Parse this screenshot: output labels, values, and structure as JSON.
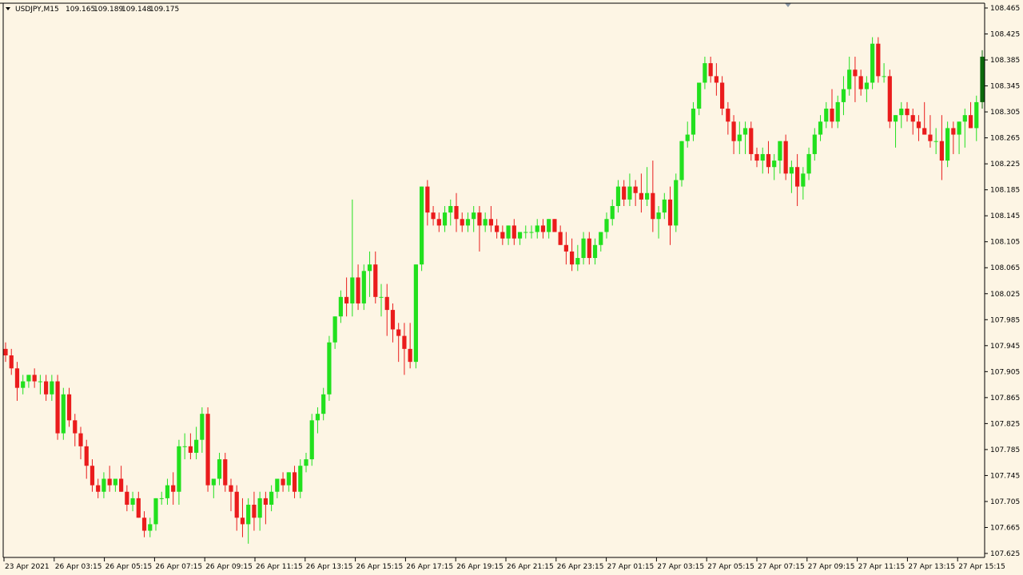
{
  "header": {
    "symbol": "USDJPY,M15",
    "open": "109.165",
    "high": "109.189",
    "low": "109.148",
    "close": "109.175",
    "menu_icon": "triangle-down-icon"
  },
  "colors": {
    "background": "#fdf5e4",
    "bull_candle": "#22e01e",
    "bear_candle": "#ea1c1c",
    "bull_candle_highlight": "#0c6a0c",
    "bear_candle_highlight": "#8b0000",
    "axis": "#000000",
    "grid_marker": "#8c9aa8"
  },
  "chart_data": {
    "type": "candlestick",
    "symbol": "USDJPY",
    "timeframe": "M15",
    "grid": false,
    "ylim": [
      107.625,
      108.465
    ],
    "y_ticks": [
      "108.465",
      "108.425",
      "108.385",
      "108.345",
      "108.305",
      "108.265",
      "108.225",
      "108.185",
      "108.145",
      "108.105",
      "108.065",
      "108.025",
      "107.985",
      "107.945",
      "107.905",
      "107.865",
      "107.825",
      "107.785",
      "107.745",
      "107.705",
      "107.665",
      "107.625"
    ],
    "x_tick_labels": [
      "23 Apr 2021",
      "26 Apr 03:15",
      "26 Apr 05:15",
      "26 Apr 07:15",
      "26 Apr 09:15",
      "26 Apr 11:15",
      "26 Apr 13:15",
      "26 Apr 15:15",
      "26 Apr 17:15",
      "26 Apr 19:15",
      "26 Apr 21:15",
      "26 Apr 23:15",
      "27 Apr 01:15",
      "27 Apr 03:15",
      "27 Apr 05:15",
      "27 Apr 07:15",
      "27 Apr 09:15",
      "27 Apr 11:15",
      "27 Apr 13:15",
      "27 Apr 15:15"
    ],
    "candles": [
      [
        107.94,
        107.95,
        107.92,
        107.93
      ],
      [
        107.93,
        107.94,
        107.9,
        107.91
      ],
      [
        107.91,
        107.92,
        107.86,
        107.88
      ],
      [
        107.88,
        107.9,
        107.87,
        107.89
      ],
      [
        107.89,
        107.9,
        107.88,
        107.9
      ],
      [
        107.9,
        107.91,
        107.88,
        107.89
      ],
      [
        107.89,
        107.9,
        107.87,
        107.89
      ],
      [
        107.89,
        107.9,
        107.86,
        107.87
      ],
      [
        107.87,
        107.9,
        107.86,
        107.89
      ],
      [
        107.89,
        107.9,
        107.8,
        107.81
      ],
      [
        107.81,
        107.88,
        107.8,
        107.87
      ],
      [
        107.87,
        107.88,
        107.82,
        107.83
      ],
      [
        107.83,
        107.84,
        107.79,
        107.81
      ],
      [
        107.81,
        107.82,
        107.77,
        107.79
      ],
      [
        107.79,
        107.8,
        107.74,
        107.76
      ],
      [
        107.76,
        107.77,
        107.72,
        107.73
      ],
      [
        107.73,
        107.74,
        107.71,
        107.72
      ],
      [
        107.72,
        107.75,
        107.71,
        107.74
      ],
      [
        107.74,
        107.76,
        107.72,
        107.73
      ],
      [
        107.73,
        107.74,
        107.72,
        107.74
      ],
      [
        107.74,
        107.76,
        107.72,
        107.72
      ],
      [
        107.72,
        107.73,
        107.69,
        107.7
      ],
      [
        107.7,
        107.72,
        107.69,
        107.71
      ],
      [
        107.71,
        107.72,
        107.68,
        107.68
      ],
      [
        107.68,
        107.69,
        107.65,
        107.66
      ],
      [
        107.66,
        107.68,
        107.65,
        107.67
      ],
      [
        107.67,
        107.71,
        107.66,
        107.71
      ],
      [
        107.71,
        107.72,
        107.7,
        107.71
      ],
      [
        107.71,
        107.74,
        107.7,
        107.73
      ],
      [
        107.73,
        107.75,
        107.7,
        107.72
      ],
      [
        107.72,
        107.8,
        107.7,
        107.79
      ],
      [
        107.79,
        107.81,
        107.77,
        107.79
      ],
      [
        107.79,
        107.81,
        107.77,
        107.78
      ],
      [
        107.78,
        107.82,
        107.77,
        107.8
      ],
      [
        107.8,
        107.85,
        107.78,
        107.84
      ],
      [
        107.84,
        107.85,
        107.72,
        107.73
      ],
      [
        107.73,
        107.74,
        107.71,
        107.74
      ],
      [
        107.74,
        107.78,
        107.73,
        107.77
      ],
      [
        107.77,
        107.78,
        107.72,
        107.73
      ],
      [
        107.73,
        107.74,
        107.69,
        107.72
      ],
      [
        107.72,
        107.73,
        107.66,
        107.68
      ],
      [
        107.68,
        107.71,
        107.65,
        107.67
      ],
      [
        107.67,
        107.71,
        107.64,
        107.7
      ],
      [
        107.7,
        107.72,
        107.66,
        107.68
      ],
      [
        107.68,
        107.72,
        107.66,
        107.71
      ],
      [
        107.71,
        107.72,
        107.67,
        107.7
      ],
      [
        107.7,
        107.73,
        107.69,
        107.72
      ],
      [
        107.72,
        107.74,
        107.71,
        107.74
      ],
      [
        107.74,
        107.75,
        107.72,
        107.73
      ],
      [
        107.73,
        107.75,
        107.72,
        107.75
      ],
      [
        107.75,
        107.76,
        107.71,
        107.72
      ],
      [
        107.72,
        107.77,
        107.71,
        107.76
      ],
      [
        107.76,
        107.78,
        107.75,
        107.77
      ],
      [
        107.77,
        107.84,
        107.76,
        107.83
      ],
      [
        107.83,
        107.85,
        107.81,
        107.84
      ],
      [
        107.84,
        107.88,
        107.83,
        107.87
      ],
      [
        107.87,
        107.96,
        107.86,
        107.95
      ],
      [
        107.95,
        107.99,
        107.94,
        107.99
      ],
      [
        107.99,
        108.03,
        107.98,
        108.02
      ],
      [
        108.02,
        108.05,
        107.99,
        108.01
      ],
      [
        108.01,
        108.17,
        107.99,
        108.05
      ],
      [
        108.05,
        108.07,
        108.0,
        108.01
      ],
      [
        108.01,
        108.07,
        108.0,
        108.06
      ],
      [
        108.06,
        108.09,
        108.02,
        108.07
      ],
      [
        108.07,
        108.09,
        108.01,
        108.02
      ],
      [
        108.02,
        108.04,
        107.99,
        108.02
      ],
      [
        108.02,
        108.04,
        107.96,
        108.0
      ],
      [
        108.0,
        108.01,
        107.95,
        107.97
      ],
      [
        107.97,
        107.98,
        107.92,
        107.96
      ],
      [
        107.96,
        107.98,
        107.9,
        107.94
      ],
      [
        107.94,
        107.98,
        107.91,
        107.92
      ],
      [
        107.92,
        108.07,
        107.91,
        108.07
      ],
      [
        108.07,
        108.19,
        108.06,
        108.19
      ],
      [
        108.19,
        108.2,
        108.13,
        108.15
      ],
      [
        108.15,
        108.16,
        108.13,
        108.14
      ],
      [
        108.14,
        108.15,
        108.12,
        108.13
      ],
      [
        108.13,
        108.16,
        108.12,
        108.15
      ],
      [
        108.15,
        108.17,
        108.13,
        108.16
      ],
      [
        108.16,
        108.18,
        108.12,
        108.14
      ],
      [
        108.14,
        108.15,
        108.12,
        108.13
      ],
      [
        108.13,
        108.15,
        108.12,
        108.14
      ],
      [
        108.14,
        108.16,
        108.12,
        108.15
      ],
      [
        108.15,
        108.16,
        108.09,
        108.13
      ],
      [
        108.13,
        108.15,
        108.12,
        108.14
      ],
      [
        108.14,
        108.16,
        108.12,
        108.13
      ],
      [
        108.13,
        108.14,
        108.11,
        108.12
      ],
      [
        108.12,
        108.13,
        108.1,
        108.11
      ],
      [
        108.11,
        108.13,
        108.1,
        108.13
      ],
      [
        108.13,
        108.14,
        108.1,
        108.11
      ],
      [
        108.11,
        108.12,
        108.1,
        108.12
      ],
      [
        108.12,
        108.13,
        108.11,
        108.12
      ],
      [
        108.12,
        108.13,
        108.11,
        108.12
      ],
      [
        108.12,
        108.14,
        108.11,
        108.13
      ],
      [
        108.13,
        108.14,
        108.11,
        108.12
      ],
      [
        108.12,
        108.14,
        108.11,
        108.14
      ],
      [
        108.14,
        108.14,
        108.12,
        108.12
      ],
      [
        108.12,
        108.13,
        108.1,
        108.1
      ],
      [
        108.1,
        108.12,
        108.07,
        108.09
      ],
      [
        108.09,
        108.11,
        108.06,
        108.07
      ],
      [
        108.07,
        108.1,
        108.06,
        108.08
      ],
      [
        108.08,
        108.12,
        108.07,
        108.11
      ],
      [
        108.11,
        108.12,
        108.07,
        108.08
      ],
      [
        108.08,
        108.11,
        108.07,
        108.1
      ],
      [
        108.1,
        108.12,
        108.09,
        108.12
      ],
      [
        108.12,
        108.15,
        108.11,
        108.14
      ],
      [
        108.14,
        108.17,
        108.13,
        108.16
      ],
      [
        108.16,
        108.2,
        108.15,
        108.19
      ],
      [
        108.19,
        108.2,
        108.16,
        108.17
      ],
      [
        108.17,
        108.21,
        108.16,
        108.19
      ],
      [
        108.19,
        108.2,
        108.16,
        108.18
      ],
      [
        108.18,
        108.21,
        108.15,
        108.17
      ],
      [
        108.17,
        108.22,
        108.16,
        108.18
      ],
      [
        108.18,
        108.23,
        108.12,
        108.14
      ],
      [
        108.14,
        108.16,
        108.11,
        108.15
      ],
      [
        108.15,
        108.18,
        108.14,
        108.17
      ],
      [
        108.17,
        108.19,
        108.1,
        108.13
      ],
      [
        108.13,
        108.21,
        108.12,
        108.2
      ],
      [
        108.2,
        108.26,
        108.19,
        108.26
      ],
      [
        108.26,
        108.29,
        108.25,
        108.27
      ],
      [
        108.27,
        108.32,
        108.26,
        108.31
      ],
      [
        108.31,
        108.35,
        108.3,
        108.35
      ],
      [
        108.35,
        108.39,
        108.34,
        108.38
      ],
      [
        108.38,
        108.39,
        108.35,
        108.36
      ],
      [
        108.36,
        108.38,
        108.33,
        108.35
      ],
      [
        108.35,
        108.36,
        108.3,
        108.31
      ],
      [
        108.31,
        108.32,
        108.27,
        108.29
      ],
      [
        108.29,
        108.3,
        108.24,
        108.26
      ],
      [
        108.26,
        108.29,
        108.24,
        108.27
      ],
      [
        108.27,
        108.29,
        108.24,
        108.28
      ],
      [
        108.28,
        108.29,
        108.23,
        108.24
      ],
      [
        108.24,
        108.25,
        108.22,
        108.23
      ],
      [
        108.23,
        108.25,
        108.21,
        108.24
      ],
      [
        108.24,
        108.26,
        108.21,
        108.22
      ],
      [
        108.22,
        108.24,
        108.2,
        108.23
      ],
      [
        108.23,
        108.26,
        108.21,
        108.26
      ],
      [
        108.26,
        108.27,
        108.2,
        108.21
      ],
      [
        108.21,
        108.23,
        108.18,
        108.22
      ],
      [
        108.22,
        108.24,
        108.16,
        108.19
      ],
      [
        108.19,
        108.22,
        108.17,
        108.21
      ],
      [
        108.21,
        108.25,
        108.2,
        108.24
      ],
      [
        108.24,
        108.28,
        108.23,
        108.27
      ],
      [
        108.27,
        108.3,
        108.26,
        108.29
      ],
      [
        108.29,
        108.32,
        108.28,
        108.31
      ],
      [
        108.31,
        108.34,
        108.28,
        108.29
      ],
      [
        108.29,
        108.33,
        108.28,
        108.32
      ],
      [
        108.32,
        108.36,
        108.3,
        108.34
      ],
      [
        108.34,
        108.39,
        108.33,
        108.37
      ],
      [
        108.37,
        108.39,
        108.32,
        108.36
      ],
      [
        108.36,
        108.37,
        108.33,
        108.34
      ],
      [
        108.34,
        108.36,
        108.32,
        108.35
      ],
      [
        108.35,
        108.42,
        108.34,
        108.41
      ],
      [
        108.41,
        108.42,
        108.35,
        108.36
      ],
      [
        108.36,
        108.38,
        108.35,
        108.36
      ],
      [
        108.36,
        108.37,
        108.28,
        108.29
      ],
      [
        108.29,
        108.3,
        108.25,
        108.3
      ],
      [
        108.3,
        108.32,
        108.28,
        108.31
      ],
      [
        108.31,
        108.32,
        108.29,
        108.3
      ],
      [
        108.3,
        108.31,
        108.27,
        108.29
      ],
      [
        108.29,
        108.3,
        108.26,
        108.28
      ],
      [
        108.28,
        108.32,
        108.27,
        108.27
      ],
      [
        108.27,
        108.3,
        108.25,
        108.26
      ],
      [
        108.26,
        108.28,
        108.24,
        108.26
      ],
      [
        108.26,
        108.3,
        108.2,
        108.23
      ],
      [
        108.23,
        108.29,
        108.22,
        108.28
      ],
      [
        108.28,
        108.29,
        108.24,
        108.27
      ],
      [
        108.27,
        108.29,
        108.24,
        108.29
      ],
      [
        108.29,
        108.31,
        108.25,
        108.3
      ],
      [
        108.3,
        108.32,
        108.28,
        108.28
      ],
      [
        108.28,
        108.33,
        108.26,
        108.32
      ],
      [
        108.32,
        108.4,
        108.31,
        108.39
      ]
    ]
  }
}
